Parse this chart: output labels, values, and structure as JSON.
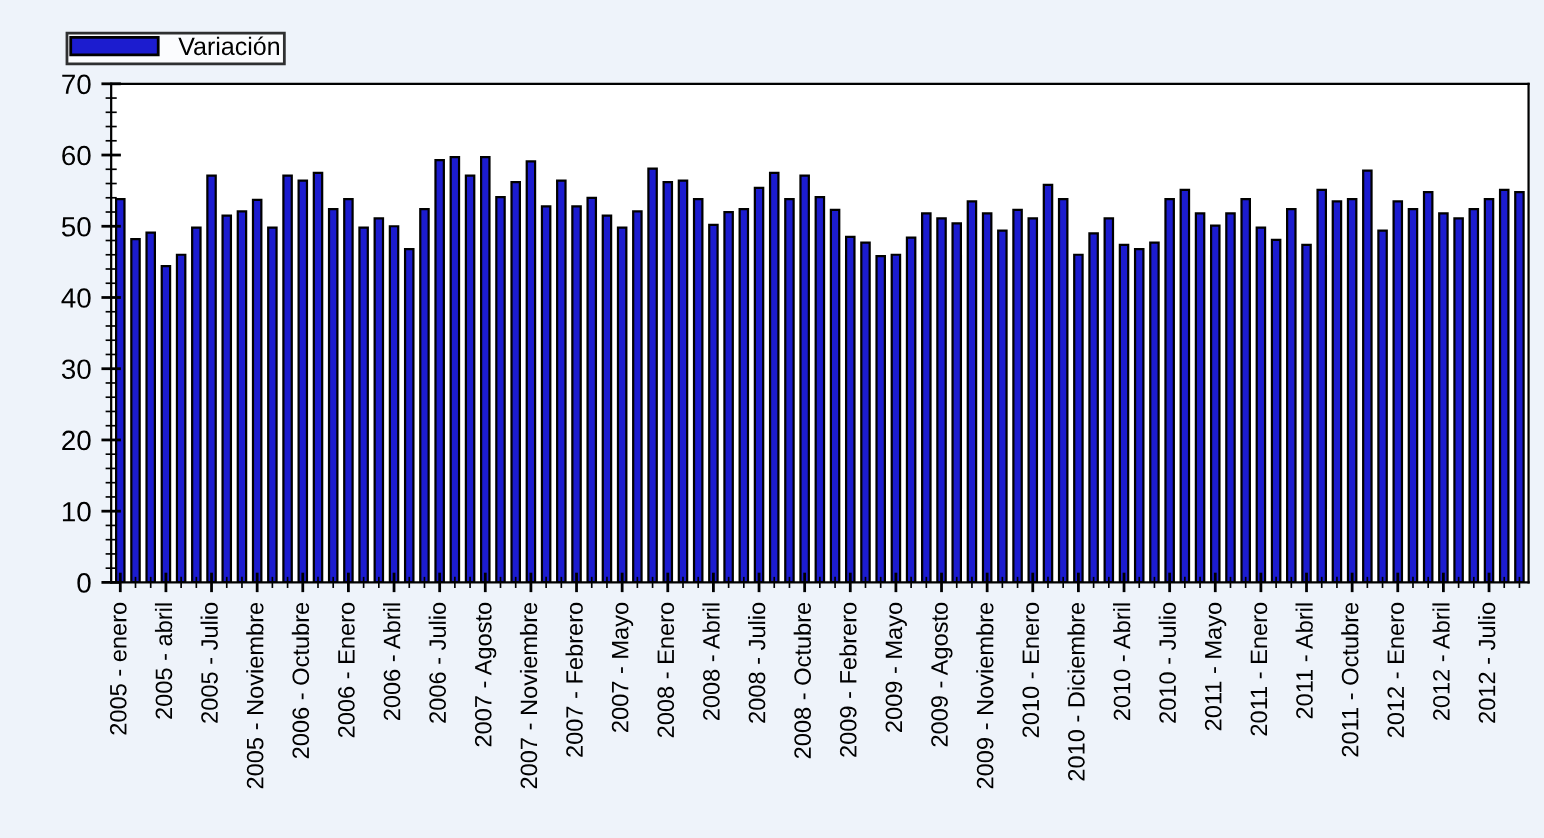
{
  "chart_data": {
    "type": "bar",
    "categories": [
      "2005 - enero",
      null,
      null,
      "2005 - abril",
      null,
      null,
      "2005 - Julio",
      null,
      null,
      "2005 - Noviembre",
      null,
      null,
      "2006 - Octubre",
      null,
      null,
      "2006 - Enero",
      null,
      null,
      "2006 - Abril",
      null,
      null,
      "2006 - Julio",
      null,
      null,
      "2007 - Agosto",
      null,
      null,
      "2007 - Noviembre",
      null,
      null,
      "2007 - Febrero",
      null,
      null,
      "2007 - Mayo",
      null,
      null,
      "2008 - Enero",
      null,
      null,
      "2008 - Abril",
      null,
      null,
      "2008 - Julio",
      null,
      null,
      "2008 - Octubre",
      null,
      null,
      "2009 - Febrero",
      null,
      null,
      "2009 - Mayo",
      null,
      null,
      "2009 - Agosto",
      null,
      null,
      "2009 - Noviembre",
      null,
      null,
      "2010 - Enero",
      null,
      null,
      "2010 - Diciembre",
      null,
      null,
      "2010 - Abril",
      null,
      null,
      "2010 - Julio",
      null,
      null,
      "2011 - Mayo",
      null,
      null,
      "2011 - Enero",
      null,
      null,
      "2011 - Abril",
      null,
      null,
      "2011 - Octubre",
      null,
      null,
      "2012 - Enero",
      null,
      null,
      "2012 - Abril",
      null,
      null,
      "2012 - Julio",
      null,
      null
    ],
    "series": [
      {
        "name": "Variación",
        "color": "#1c1ccf",
        "values": [
          53.8,
          48.2,
          49.1,
          44.4,
          46.0,
          49.8,
          57.1,
          51.5,
          52.1,
          53.7,
          49.8,
          57.1,
          56.4,
          57.5,
          52.4,
          53.8,
          49.8,
          51.1,
          50.0,
          46.8,
          52.4,
          59.3,
          59.7,
          57.1,
          59.7,
          54.1,
          56.2,
          59.1,
          52.8,
          56.4,
          52.8,
          54.0,
          51.5,
          49.8,
          52.1,
          58.1,
          56.2,
          56.4,
          53.8,
          50.2,
          52.0,
          52.4,
          55.4,
          57.5,
          53.8,
          57.1,
          54.1,
          52.3,
          48.5,
          47.7,
          45.8,
          46.0,
          48.4,
          51.8,
          51.1,
          50.4,
          53.5,
          51.8,
          49.4,
          52.3,
          51.1,
          55.8,
          53.8,
          46.0,
          49.0,
          51.1,
          47.4,
          46.8,
          47.7,
          53.8,
          55.1,
          51.8,
          50.1,
          51.8,
          53.8,
          49.8,
          48.1,
          52.4,
          47.4,
          55.1,
          53.5,
          53.8,
          57.8,
          49.4,
          53.5,
          52.4,
          54.8,
          51.8,
          51.1,
          52.4,
          53.8,
          55.1,
          54.8
        ]
      }
    ],
    "ylim": [
      0,
      70
    ],
    "yticks": [
      0,
      10,
      20,
      30,
      40,
      50,
      60,
      70
    ],
    "grid": false,
    "legend": "top left"
  }
}
